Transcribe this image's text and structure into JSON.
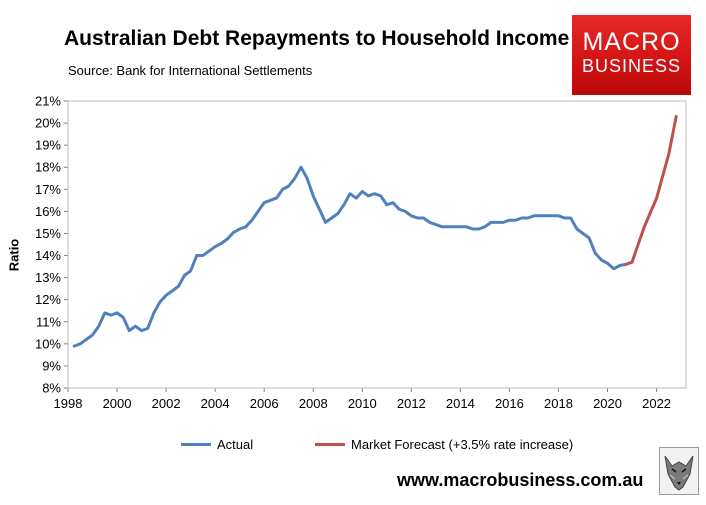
{
  "title": "Australian Debt Repayments to Household Income",
  "subtitle": "Source: Bank for International Settlements",
  "logo": {
    "line1": "MACRO",
    "line2": "BUSINESS"
  },
  "footer": "www.macrobusiness.com.au",
  "colors": {
    "actual": "#4f81bd",
    "forecast": "#c0504d",
    "brand": "#d51414"
  },
  "chart_data": {
    "type": "line",
    "title": "Australian Debt Repayments to Household Income",
    "ylabel": "Ratio",
    "xlabel": "",
    "xlim": [
      1998,
      2023.2
    ],
    "ylim": [
      8,
      21
    ],
    "xticks": [
      1998,
      2000,
      2002,
      2004,
      2006,
      2008,
      2010,
      2012,
      2014,
      2016,
      2018,
      2020,
      2022
    ],
    "yticks": [
      8,
      9,
      10,
      11,
      12,
      13,
      14,
      15,
      16,
      17,
      18,
      19,
      20,
      21
    ],
    "ytick_labels": [
      "8%",
      "9%",
      "10%",
      "11%",
      "12%",
      "13%",
      "14%",
      "15%",
      "16%",
      "17%",
      "18%",
      "19%",
      "20%",
      "21%"
    ],
    "grid": false,
    "legend_position": "bottom",
    "series": [
      {
        "name": "Actual",
        "color": "#4f81bd",
        "x": [
          1998.25,
          1998.5,
          1998.75,
          1999.0,
          1999.25,
          1999.5,
          1999.75,
          2000.0,
          2000.25,
          2000.5,
          2000.75,
          2001.0,
          2001.25,
          2001.5,
          2001.75,
          2002.0,
          2002.25,
          2002.5,
          2002.75,
          2003.0,
          2003.25,
          2003.5,
          2003.75,
          2004.0,
          2004.25,
          2004.5,
          2004.75,
          2005.0,
          2005.25,
          2005.5,
          2005.75,
          2006.0,
          2006.25,
          2006.5,
          2006.75,
          2007.0,
          2007.25,
          2007.5,
          2007.75,
          2008.0,
          2008.25,
          2008.5,
          2008.75,
          2009.0,
          2009.25,
          2009.5,
          2009.75,
          2010.0,
          2010.25,
          2010.5,
          2010.75,
          2011.0,
          2011.25,
          2011.5,
          2011.75,
          2012.0,
          2012.25,
          2012.5,
          2012.75,
          2013.0,
          2013.25,
          2013.5,
          2013.75,
          2014.0,
          2014.25,
          2014.5,
          2014.75,
          2015.0,
          2015.25,
          2015.5,
          2015.75,
          2016.0,
          2016.25,
          2016.5,
          2016.75,
          2017.0,
          2017.25,
          2017.5,
          2017.75,
          2018.0,
          2018.25,
          2018.5,
          2018.75,
          2019.0,
          2019.25,
          2019.5,
          2019.75,
          2020.0,
          2020.25,
          2020.5,
          2020.75,
          2021.0
        ],
        "y": [
          9.9,
          10.0,
          10.2,
          10.4,
          10.8,
          11.4,
          11.3,
          11.4,
          11.2,
          10.6,
          10.8,
          10.6,
          10.7,
          11.4,
          11.9,
          12.2,
          12.4,
          12.6,
          13.1,
          13.3,
          14.0,
          14.0,
          14.2,
          14.4,
          14.55,
          14.75,
          15.05,
          15.2,
          15.3,
          15.6,
          16.0,
          16.4,
          16.5,
          16.6,
          17.0,
          17.15,
          17.5,
          18.0,
          17.5,
          16.7,
          16.1,
          15.5,
          15.7,
          15.9,
          16.3,
          16.8,
          16.6,
          16.9,
          16.7,
          16.8,
          16.7,
          16.3,
          16.4,
          16.1,
          16.0,
          15.8,
          15.7,
          15.7,
          15.5,
          15.4,
          15.3,
          15.3,
          15.3,
          15.3,
          15.3,
          15.2,
          15.2,
          15.3,
          15.5,
          15.5,
          15.5,
          15.6,
          15.6,
          15.7,
          15.7,
          15.8,
          15.8,
          15.8,
          15.8,
          15.8,
          15.7,
          15.7,
          15.2,
          15.0,
          14.8,
          14.1,
          13.8,
          13.65,
          13.4,
          13.55,
          13.6,
          13.7
        ]
      },
      {
        "name": "Market Forecast (+3.5% rate increase)",
        "color": "#c0504d",
        "x": [
          2020.75,
          2021.0,
          2021.5,
          2022.0,
          2022.5,
          2022.8
        ],
        "y": [
          13.6,
          13.7,
          15.3,
          16.6,
          18.6,
          20.3
        ]
      }
    ]
  }
}
